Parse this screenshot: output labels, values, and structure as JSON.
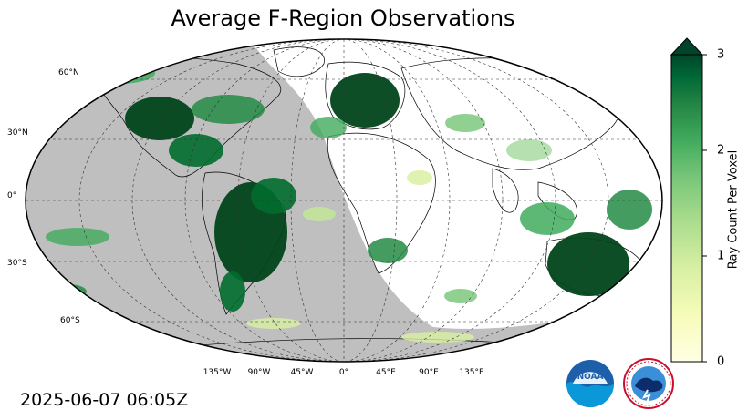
{
  "title": "Average F-Region Observations",
  "timestamp": "2025-06-07 06:05Z",
  "map": {
    "projection": "robinson",
    "night_color": "#bfbfbf",
    "land_outline_color": "#000000",
    "gridline_style": "dashed",
    "lat_labels": [
      "60°N",
      "30°N",
      "0°",
      "30°S",
      "60°S"
    ],
    "lon_labels": [
      "135°W",
      "90°W",
      "45°W",
      "0°",
      "45°E",
      "90°E",
      "135°E"
    ]
  },
  "colorbar": {
    "label": "Ray Count Per Voxel",
    "colormap": "YlGn",
    "min": 0,
    "max": 3,
    "extend": "max",
    "ticks": [
      "0",
      "1",
      "2",
      "3"
    ]
  },
  "logos": {
    "noaa": {
      "name": "noaa-logo",
      "text": "NOAA"
    },
    "nws": {
      "name": "nws-logo",
      "text": "NATIONAL WEATHER SERVICE"
    }
  }
}
